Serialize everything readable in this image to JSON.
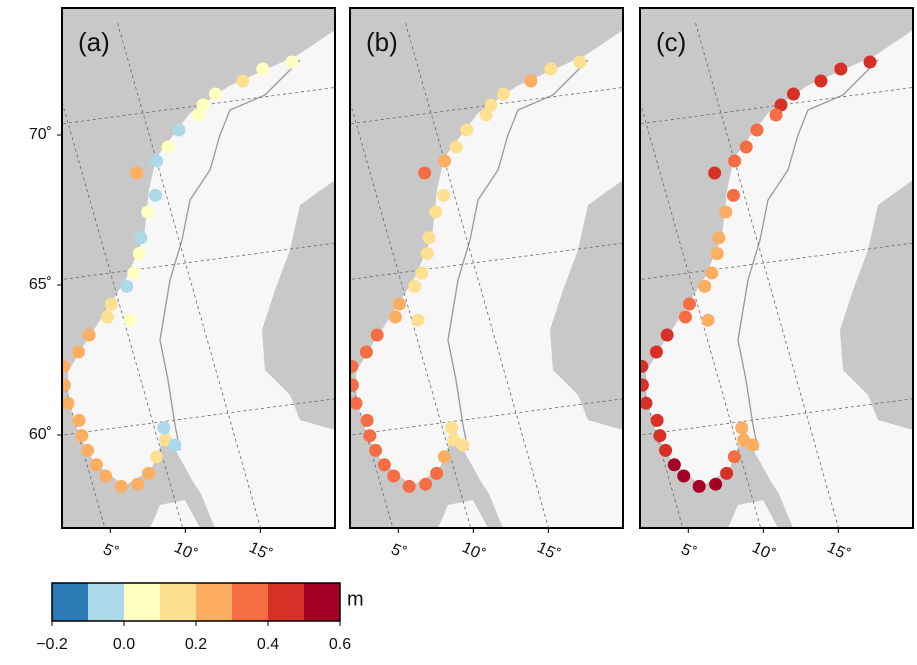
{
  "chart_data": {
    "type": "map",
    "panels": [
      {
        "label": "(a)",
        "values": [
          0.05,
          0.05,
          0.1,
          0.05,
          0.05,
          0.0,
          -0.05,
          0.0,
          -0.05,
          0.25,
          -0.05,
          0.05,
          -0.05,
          0.05,
          0.05,
          -0.05,
          0.15,
          0.1,
          0.05,
          0.25,
          0.25,
          0.25,
          0.25,
          0.25,
          0.2,
          0.25,
          0.2,
          0.2,
          0.2,
          0.25,
          0.25,
          0.2,
          0.15,
          0.1,
          -0.05,
          -0.05
        ]
      },
      {
        "label": "(b)",
        "values": [
          0.15,
          0.15,
          0.2,
          0.15,
          0.1,
          0.1,
          0.1,
          0.15,
          0.2,
          0.35,
          0.1,
          0.1,
          0.1,
          0.1,
          0.1,
          0.1,
          0.25,
          0.2,
          0.15,
          0.35,
          0.35,
          0.35,
          0.35,
          0.35,
          0.3,
          0.3,
          0.3,
          0.3,
          0.35,
          0.35,
          0.35,
          0.3,
          0.25,
          0.15,
          0.1,
          0.1
        ]
      },
      {
        "label": "(c)",
        "values": [
          0.45,
          0.45,
          0.45,
          0.45,
          0.4,
          0.35,
          0.35,
          0.35,
          0.35,
          0.45,
          0.3,
          0.25,
          0.25,
          0.2,
          0.2,
          0.25,
          0.35,
          0.35,
          0.25,
          0.45,
          0.45,
          0.45,
          0.45,
          0.45,
          0.45,
          0.45,
          0.45,
          0.5,
          0.55,
          0.55,
          0.5,
          0.4,
          0.3,
          0.2,
          0.2,
          0.2
        ]
      }
    ],
    "stations": [
      [
        71.0,
        25.5
      ],
      [
        70.9,
        23.5
      ],
      [
        70.6,
        22.0
      ],
      [
        70.3,
        20.0
      ],
      [
        70.0,
        19.0
      ],
      [
        69.7,
        18.5
      ],
      [
        69.3,
        17.0
      ],
      [
        68.8,
        16.0
      ],
      [
        68.4,
        15.0
      ],
      [
        68.1,
        13.5
      ],
      [
        67.3,
        14.3
      ],
      [
        66.8,
        13.5
      ],
      [
        66.0,
        12.6
      ],
      [
        65.5,
        12.2
      ],
      [
        64.9,
        11.5
      ],
      [
        64.5,
        10.8
      ],
      [
        64.0,
        9.5
      ],
      [
        63.6,
        9.0
      ],
      [
        63.4,
        10.4
      ],
      [
        63.1,
        7.5
      ],
      [
        62.6,
        6.5
      ],
      [
        62.2,
        5.3
      ],
      [
        61.6,
        5.0
      ],
      [
        61.0,
        4.9
      ],
      [
        60.4,
        5.3
      ],
      [
        59.9,
        5.2
      ],
      [
        59.4,
        5.3
      ],
      [
        58.9,
        5.6
      ],
      [
        58.5,
        6.0
      ],
      [
        58.1,
        6.8
      ],
      [
        58.1,
        7.9
      ],
      [
        58.4,
        8.8
      ],
      [
        58.9,
        9.6
      ],
      [
        59.4,
        10.5
      ],
      [
        59.8,
        10.6
      ],
      [
        59.2,
        11.0
      ]
    ],
    "latticks": [
      {
        "value": 70,
        "label": "70˚"
      },
      {
        "value": 65,
        "label": "65˚"
      },
      {
        "value": 60,
        "label": "60˚"
      }
    ],
    "lonticks": [
      {
        "value": 5,
        "label": "5˚"
      },
      {
        "value": 10,
        "label": "10˚"
      },
      {
        "value": 15,
        "label": "15˚"
      }
    ],
    "colorbar": {
      "colors": [
        "#2c7bb6",
        "#abd9e9",
        "#ffffbf",
        "#fee090",
        "#fdae61",
        "#f46d43",
        "#d73027",
        "#a50026"
      ],
      "lim": [
        -0.2,
        0.6
      ],
      "ticks": [
        {
          "value": -0.2,
          "label": "−0.2"
        },
        {
          "value": 0.0,
          "label": "0.0"
        },
        {
          "value": 0.2,
          "label": "0.2"
        },
        {
          "value": 0.4,
          "label": "0.4"
        },
        {
          "value": 0.6,
          "label": "0.6"
        }
      ],
      "unit": "m"
    }
  }
}
